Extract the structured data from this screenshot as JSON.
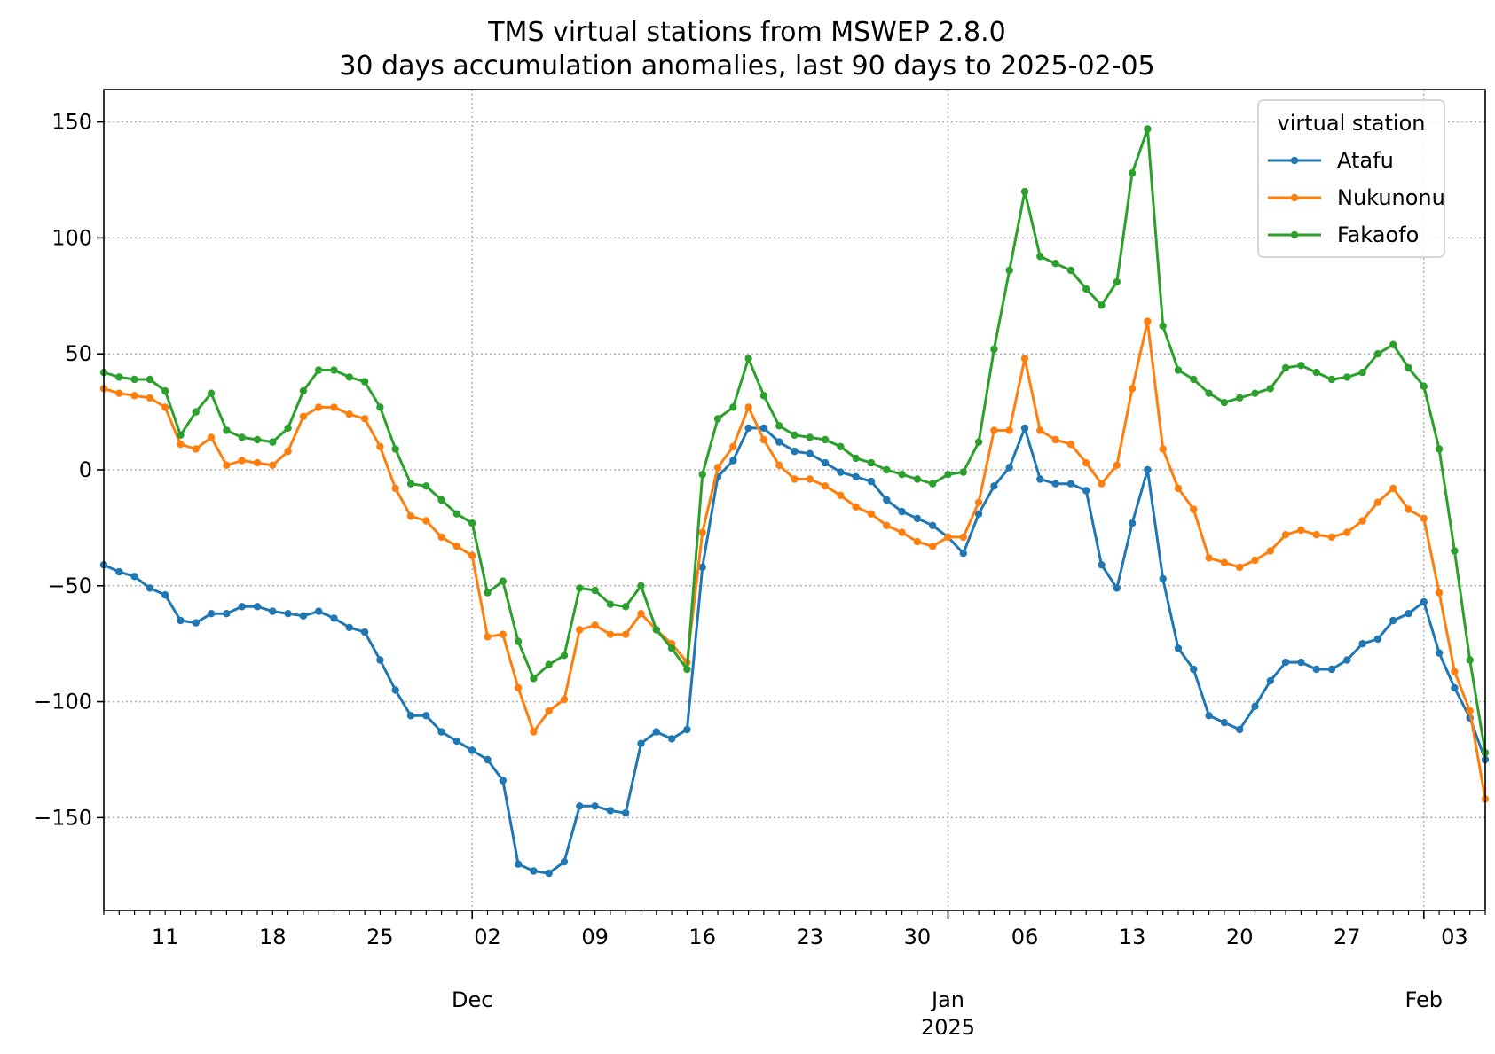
{
  "chart_data": {
    "type": "line",
    "title": "TMS virtual stations from MSWEP 2.8.0",
    "subtitle": "30 days accumulation anomalies, last 90 days to 2025-02-05",
    "xlabel": "",
    "ylabel": "",
    "x_start": "2024-11-07",
    "x_end": "2025-02-05",
    "xlim": [
      "2024-11-07",
      "2025-02-05"
    ],
    "ylim": [
      -190,
      164
    ],
    "y_ticks": [
      -150,
      -100,
      -50,
      0,
      50,
      100,
      150
    ],
    "y_tick_labels": [
      "−150",
      "−100",
      "−50",
      "0",
      "50",
      "100",
      "150"
    ],
    "x_ticks": [
      {
        "date": "2024-11-11",
        "label": "11"
      },
      {
        "date": "2024-11-18",
        "label": "18"
      },
      {
        "date": "2024-11-25",
        "label": "25"
      },
      {
        "date": "2024-12-02",
        "label": "02"
      },
      {
        "date": "2024-12-09",
        "label": "09"
      },
      {
        "date": "2024-12-16",
        "label": "16"
      },
      {
        "date": "2024-12-23",
        "label": "23"
      },
      {
        "date": "2024-12-30",
        "label": "30"
      },
      {
        "date": "2025-01-06",
        "label": "06"
      },
      {
        "date": "2025-01-13",
        "label": "13"
      },
      {
        "date": "2025-01-20",
        "label": "20"
      },
      {
        "date": "2025-01-27",
        "label": "27"
      },
      {
        "date": "2025-02-03",
        "label": "03"
      }
    ],
    "month_ticks": [
      {
        "date": "2024-12-01",
        "label": "Dec"
      },
      {
        "date": "2025-01-01",
        "label": "Jan",
        "sublabel": "2025"
      },
      {
        "date": "2025-02-01",
        "label": "Feb"
      }
    ],
    "grid": true,
    "legend": {
      "title": "virtual station",
      "placement": "top-right"
    },
    "series": [
      {
        "name": "Atafu",
        "color": "#1f77b4",
        "values": [
          -41,
          -44,
          -46,
          -51,
          -54,
          -65,
          -66,
          -62,
          -62,
          -59,
          -59,
          -61,
          -62,
          -63,
          -61,
          -64,
          -68,
          -70,
          -82,
          -95,
          -106,
          -106,
          -113,
          -117,
          -121,
          -125,
          -134,
          -170,
          -173,
          -174,
          -169,
          -145,
          -145,
          -147,
          -148,
          -118,
          -113,
          -116,
          -112,
          -42,
          -3,
          4,
          18,
          18,
          12,
          8,
          7,
          3,
          -1,
          -3,
          -5,
          -13,
          -18,
          -21,
          -24,
          -29,
          -36,
          -19,
          -7,
          1,
          18,
          -4,
          -6,
          -6,
          -9,
          -41,
          -51,
          -23,
          0,
          -47,
          -77,
          -86,
          -106,
          -109,
          -112,
          -102,
          -91,
          -83,
          -83,
          -86,
          -86,
          -82,
          -75,
          -73,
          -65,
          -62,
          -57,
          -79,
          -94,
          -107,
          -125
        ]
      },
      {
        "name": "Nukunonu",
        "color": "#ff7f0e",
        "values": [
          35,
          33,
          32,
          31,
          27,
          11,
          9,
          14,
          2,
          4,
          3,
          2,
          8,
          23,
          27,
          27,
          24,
          22,
          10,
          -8,
          -20,
          -22,
          -29,
          -33,
          -37,
          -72,
          -71,
          -94,
          -113,
          -104,
          -99,
          -69,
          -67,
          -71,
          -71,
          -62,
          -69,
          -75,
          -83,
          -27,
          1,
          10,
          27,
          13,
          2,
          -4,
          -4,
          -7,
          -11,
          -16,
          -19,
          -24,
          -27,
          -31,
          -33,
          -29,
          -29,
          -14,
          17,
          17,
          48,
          17,
          13,
          11,
          3,
          -6,
          2,
          35,
          64,
          9,
          -8,
          -17,
          -38,
          -40,
          -42,
          -39,
          -35,
          -28,
          -26,
          -28,
          -29,
          -27,
          -22,
          -14,
          -8,
          -17,
          -21,
          -53,
          -87,
          -104,
          -142
        ]
      },
      {
        "name": "Fakaofo",
        "color": "#2ca02c",
        "values": [
          42,
          40,
          39,
          39,
          34,
          15,
          25,
          33,
          17,
          14,
          13,
          12,
          18,
          34,
          43,
          43,
          40,
          38,
          27,
          9,
          -6,
          -7,
          -13,
          -19,
          -23,
          -53,
          -48,
          -74,
          -90,
          -84,
          -80,
          -51,
          -52,
          -58,
          -59,
          -50,
          -69,
          -77,
          -86,
          -2,
          22,
          27,
          48,
          32,
          19,
          15,
          14,
          13,
          10,
          5,
          3,
          0,
          -2,
          -4,
          -6,
          -2,
          -1,
          12,
          52,
          86,
          120,
          92,
          89,
          86,
          78,
          71,
          81,
          128,
          147,
          62,
          43,
          39,
          33,
          29,
          31,
          33,
          35,
          44,
          45,
          42,
          39,
          40,
          42,
          50,
          54,
          44,
          36,
          9,
          -35,
          -82,
          -122
        ]
      }
    ]
  }
}
